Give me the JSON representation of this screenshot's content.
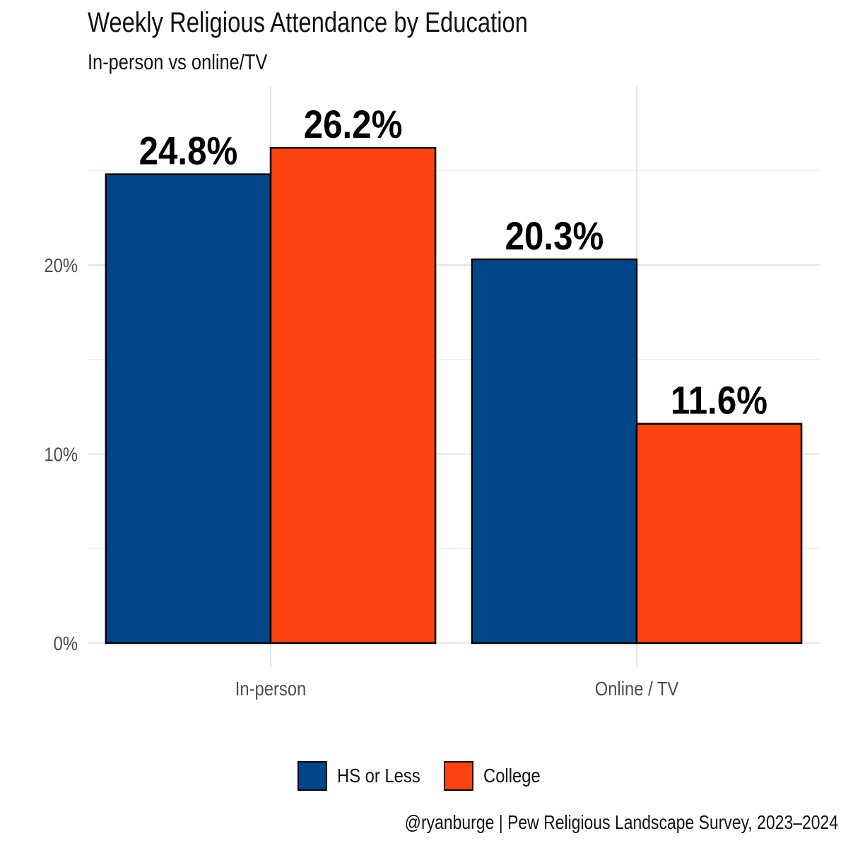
{
  "title": "Weekly Religious Attendance by Education",
  "subtitle": "In-person vs online/TV",
  "caption": "@ryanburge | Pew Religious Landscape Survey, 2023–2024",
  "legend": [
    {
      "label": "HS or Less",
      "color": "#02468A"
    },
    {
      "label": "College",
      "color": "#FF4411"
    }
  ],
  "chart_data": {
    "type": "bar",
    "title": "Weekly Religious Attendance by Education",
    "subtitle": "In-person vs online/TV",
    "categories": [
      "In-person",
      "Online / TV"
    ],
    "series": [
      {
        "name": "HS or Less",
        "color": "#02468A",
        "values": [
          24.8,
          20.3
        ],
        "labels": [
          "24.8%",
          "20.3%"
        ]
      },
      {
        "name": "College",
        "color": "#FF4411",
        "values": [
          26.2,
          11.6
        ],
        "labels": [
          "26.2%",
          "11.6%"
        ]
      }
    ],
    "xlabel": "",
    "ylabel": "",
    "ylim": [
      0,
      29.5
    ],
    "yticks": [
      0,
      10,
      20
    ],
    "ytick_labels": [
      "0%",
      "10%",
      "20%"
    ],
    "grid": true,
    "legend_position": "bottom"
  }
}
